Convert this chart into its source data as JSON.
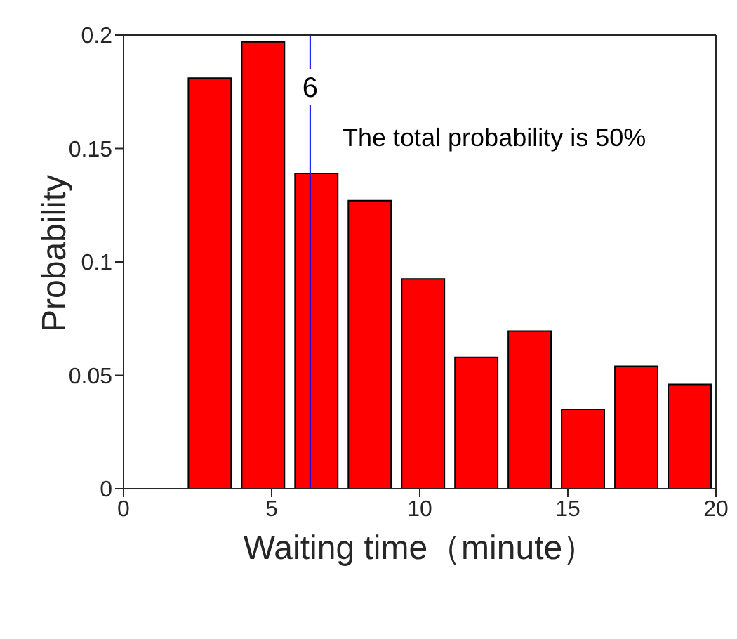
{
  "chart_data": {
    "type": "histogram",
    "xlabel": "Waiting time（minute）",
    "ylabel": "Probability",
    "bins": [
      2,
      3.8,
      5.6,
      7.4,
      9.2,
      11,
      12.8,
      14.6,
      16.4,
      18.2,
      20
    ],
    "values": [
      0.181,
      0.197,
      0.139,
      0.127,
      0.0925,
      0.058,
      0.0695,
      0.035,
      0.054,
      0.046
    ],
    "color": "#ff0000",
    "xlim": [
      0,
      20
    ],
    "xticks": [
      0,
      5,
      10,
      15,
      20
    ],
    "ylim": [
      0,
      0.2
    ],
    "yticks": [
      0,
      0.05,
      0.1,
      0.15,
      0.2
    ],
    "ref_lines": [
      {
        "axis": "x",
        "value": 6.3,
        "label": "6",
        "color": "#0000ff"
      }
    ],
    "annotations": [
      "The total probability is 50%"
    ],
    "grid": false,
    "legend": false
  }
}
